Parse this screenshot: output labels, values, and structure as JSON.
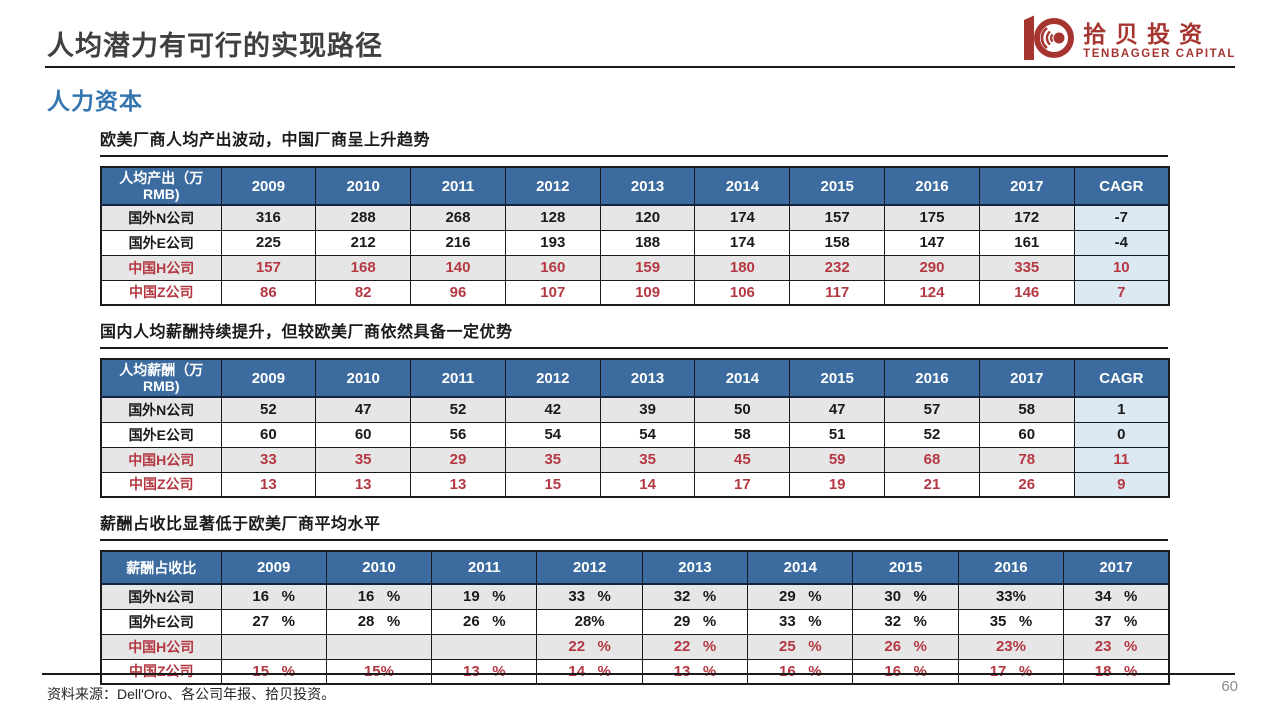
{
  "page": {
    "title": "人均潜力有可行的实现路径",
    "section_label": "人力资本",
    "source_note": "资料来源：Dell'Oro、各公司年报、拾贝投资。",
    "page_number": "60"
  },
  "logo": {
    "name_cn": "拾贝投资",
    "name_en": "TENBAGGER CAPITAL",
    "brand_color": "#A63530"
  },
  "colors": {
    "header_blue": "#3C6C9F",
    "stripe_gray": "#E7E6E6",
    "cagr_light_blue": "#DCE8F2",
    "china_red": "#B43842",
    "section_blue": "#3575AE"
  },
  "tables": [
    {
      "title": "欧美厂商人均产出波动，中国厂商呈上升趋势",
      "label_header": "人均产出（万RMB)",
      "columns": [
        "2009",
        "2010",
        "2011",
        "2012",
        "2013",
        "2014",
        "2015",
        "2016",
        "2017",
        "CAGR"
      ],
      "has_cagr": true,
      "rows": [
        {
          "label": "国外N公司",
          "red": false,
          "values": [
            "316",
            "288",
            "268",
            "128",
            "120",
            "174",
            "157",
            "175",
            "172",
            "-7"
          ]
        },
        {
          "label": "国外E公司",
          "red": false,
          "values": [
            "225",
            "212",
            "216",
            "193",
            "188",
            "174",
            "158",
            "147",
            "161",
            "-4"
          ]
        },
        {
          "label": "中国H公司",
          "red": true,
          "values": [
            "157",
            "168",
            "140",
            "160",
            "159",
            "180",
            "232",
            "290",
            "335",
            "10"
          ]
        },
        {
          "label": "中国Z公司",
          "red": true,
          "values": [
            "86",
            "82",
            "96",
            "107",
            "109",
            "106",
            "117",
            "124",
            "146",
            "7"
          ]
        }
      ]
    },
    {
      "title": "国内人均薪酬持续提升，但较欧美厂商依然具备一定优势",
      "label_header": "人均薪酬（万RMB)",
      "columns": [
        "2009",
        "2010",
        "2011",
        "2012",
        "2013",
        "2014",
        "2015",
        "2016",
        "2017",
        "CAGR"
      ],
      "has_cagr": true,
      "rows": [
        {
          "label": "国外N公司",
          "red": false,
          "values": [
            "52",
            "47",
            "52",
            "42",
            "39",
            "50",
            "47",
            "57",
            "58",
            "1"
          ]
        },
        {
          "label": "国外E公司",
          "red": false,
          "values": [
            "60",
            "60",
            "56",
            "54",
            "54",
            "58",
            "51",
            "52",
            "60",
            "0"
          ]
        },
        {
          "label": "中国H公司",
          "red": true,
          "values": [
            "33",
            "35",
            "29",
            "35",
            "35",
            "45",
            "59",
            "68",
            "78",
            "11"
          ]
        },
        {
          "label": "中国Z公司",
          "red": true,
          "values": [
            "13",
            "13",
            "13",
            "15",
            "14",
            "17",
            "19",
            "21",
            "26",
            "9"
          ]
        }
      ]
    },
    {
      "title": "薪酬占收比显著低于欧美厂商平均水平",
      "label_header": "薪酬占收比",
      "columns": [
        "2009",
        "2010",
        "2011",
        "2012",
        "2013",
        "2014",
        "2015",
        "2016",
        "2017"
      ],
      "has_cagr": false,
      "rows": [
        {
          "label": "国外N公司",
          "red": false,
          "values": [
            "16   %",
            "16   %",
            "19   %",
            "33   %",
            "32   %",
            "29   %",
            "30   %",
            "33%",
            "34   %"
          ]
        },
        {
          "label": "国外E公司",
          "red": false,
          "values": [
            "27   %",
            "28   %",
            "26   %",
            "28%",
            "29   %",
            "33   %",
            "32   %",
            "35   %",
            "37   %"
          ]
        },
        {
          "label": "中国H公司",
          "red": true,
          "values": [
            "",
            "",
            "",
            "22   %",
            "22   %",
            "25   %",
            "26   %",
            "23%",
            "23   %"
          ]
        },
        {
          "label": "中国Z公司",
          "red": true,
          "values": [
            "15   %",
            "15%",
            "13   %",
            "14   %",
            "13   %",
            "16   %",
            "16   %",
            "17   %",
            "18   %"
          ]
        }
      ]
    }
  ]
}
